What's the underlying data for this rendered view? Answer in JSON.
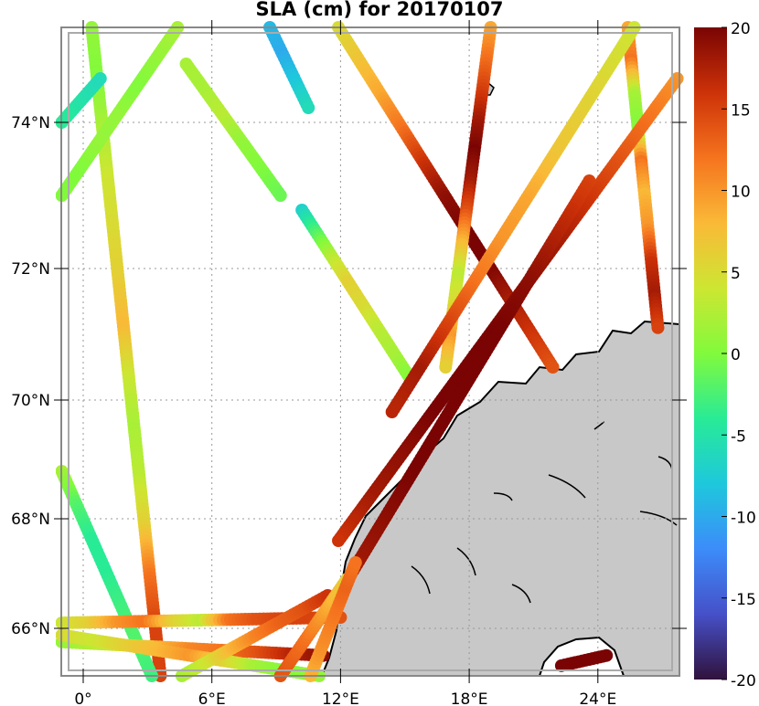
{
  "title": "SLA (cm) for 20170107",
  "chart_data": {
    "type": "scatter",
    "title": "SLA (cm) for 20170107",
    "xlabel": "",
    "ylabel": "",
    "xlim": [
      -1,
      27.7
    ],
    "ylim": [
      65.3,
      75.3
    ],
    "x_ticks": [
      {
        "v": 0,
        "label": "0°"
      },
      {
        "v": 6,
        "label": "6°E"
      },
      {
        "v": 12,
        "label": "12°E"
      },
      {
        "v": 18,
        "label": "18°E"
      },
      {
        "v": 24,
        "label": "24°E"
      }
    ],
    "y_ticks": [
      {
        "v": 66,
        "label": "66°N"
      },
      {
        "v": 68,
        "label": "68°N"
      },
      {
        "v": 70,
        "label": "70°N"
      },
      {
        "v": 72,
        "label": "72°N"
      },
      {
        "v": 74,
        "label": "74°N"
      }
    ],
    "colorbar": {
      "min": -20,
      "max": 20,
      "ticks": [
        {
          "v": 20,
          "label": "20"
        },
        {
          "v": 15,
          "label": "15"
        },
        {
          "v": 10,
          "label": "10"
        },
        {
          "v": 5,
          "label": "5"
        },
        {
          "v": 0,
          "label": "0"
        },
        {
          "v": -5,
          "label": "-5"
        },
        {
          "v": -10,
          "label": "-10"
        },
        {
          "v": -15,
          "label": "-15"
        },
        {
          "v": -20,
          "label": "-20"
        }
      ]
    },
    "grid": true,
    "tracks": [
      {
        "start": [
          0.4,
          75.3
        ],
        "end": [
          3.6,
          65.3
        ],
        "sla": [
          1,
          0,
          2,
          4,
          5,
          6,
          8,
          4,
          2,
          3,
          6,
          12,
          15,
          15
        ]
      },
      {
        "start": [
          -1,
          73.0
        ],
        "end": [
          4.4,
          75.3
        ],
        "sla": [
          0,
          0,
          1,
          1,
          0,
          1,
          2
        ]
      },
      {
        "start": [
          -1,
          74.0
        ],
        "end": [
          0.8,
          74.6
        ],
        "sla": [
          -4,
          -5,
          -6
        ]
      },
      {
        "start": [
          8.7,
          75.3
        ],
        "end": [
          10.5,
          74.2
        ],
        "sla": [
          -9,
          -10,
          -8,
          -6
        ]
      },
      {
        "start": [
          10.2,
          72.8
        ],
        "end": [
          15.3,
          70.3
        ],
        "sla": [
          -7,
          -2,
          3,
          6,
          5,
          3,
          2,
          0
        ]
      },
      {
        "start": [
          4.8,
          74.8
        ],
        "end": [
          9.2,
          73.0
        ],
        "sla": [
          2,
          2,
          3,
          1,
          0,
          -1
        ]
      },
      {
        "start": [
          11.9,
          75.3
        ],
        "end": [
          21.9,
          70.5
        ],
        "sla": [
          5,
          7,
          9,
          12,
          16,
          19,
          20,
          20,
          18,
          16,
          14
        ]
      },
      {
        "start": [
          19.0,
          75.3
        ],
        "end": [
          16.9,
          70.5
        ],
        "sla": [
          9,
          12,
          15,
          18,
          20,
          18,
          14,
          8,
          3,
          5,
          10,
          6
        ]
      },
      {
        "start": [
          25.4,
          75.3
        ],
        "end": [
          26.8,
          71.1
        ],
        "sla": [
          9,
          12,
          2,
          0,
          12,
          8,
          10,
          16,
          18,
          15
        ]
      },
      {
        "start": [
          25.7,
          75.3
        ],
        "end": [
          14.4,
          69.8
        ],
        "sla": [
          4,
          5,
          6,
          7,
          9,
          10,
          12,
          15,
          18,
          17
        ]
      },
      {
        "start": [
          27.7,
          74.6
        ],
        "end": [
          11.9,
          67.6
        ],
        "sla": [
          10,
          12,
          14,
          16,
          18,
          19,
          20,
          20,
          20,
          19,
          18,
          16
        ]
      },
      {
        "start": [
          23.6,
          73.2
        ],
        "end": [
          12.5,
          67.0
        ],
        "sla": [
          15,
          17,
          19,
          20,
          20,
          20,
          20,
          19,
          18
        ]
      },
      {
        "start": [
          -1,
          68.8
        ],
        "end": [
          3.2,
          65.3
        ],
        "sla": [
          2,
          -2,
          -4,
          -4,
          -3,
          -2,
          -3
        ]
      },
      {
        "start": [
          -1,
          66.1
        ],
        "end": [
          12.0,
          66.2
        ],
        "sla": [
          4,
          6,
          10,
          12,
          6,
          3,
          12,
          14,
          15,
          15,
          14
        ]
      },
      {
        "start": [
          -1,
          65.8
        ],
        "end": [
          11.2,
          65.6
        ],
        "sla": [
          1,
          3,
          5,
          8,
          11,
          12,
          14,
          17,
          19
        ]
      },
      {
        "start": [
          -1,
          65.9
        ],
        "end": [
          11.0,
          65.3
        ],
        "sla": [
          5,
          4,
          6,
          8,
          10,
          6,
          2,
          0,
          1
        ]
      },
      {
        "start": [
          4.6,
          65.3
        ],
        "end": [
          11.4,
          66.6
        ],
        "sla": [
          2,
          4,
          8,
          11,
          13,
          14,
          16
        ]
      },
      {
        "start": [
          9.2,
          65.3
        ],
        "end": [
          12.3,
          66.9
        ],
        "sla": [
          14,
          13,
          12,
          10,
          8,
          6
        ]
      },
      {
        "start": [
          10.6,
          65.3
        ],
        "end": [
          12.7,
          67.2
        ],
        "sla": [
          8,
          10,
          11,
          12,
          13,
          12
        ]
      },
      {
        "start": [
          22.3,
          65.45
        ],
        "end": [
          24.4,
          65.6
        ],
        "sla": [
          20,
          20,
          20
        ]
      }
    ]
  }
}
